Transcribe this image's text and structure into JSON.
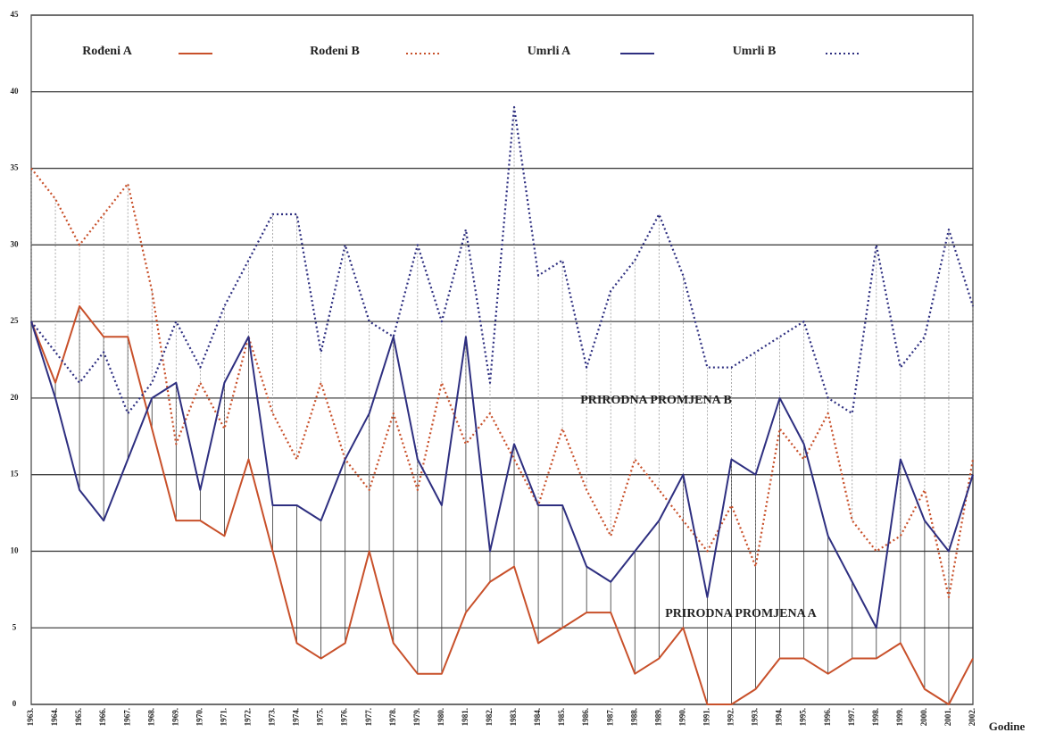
{
  "chart_data": {
    "type": "line",
    "categories": [
      "1963.",
      "1964.",
      "1965.",
      "1966.",
      "1967.",
      "1968.",
      "1969.",
      "1970.",
      "1971.",
      "1972.",
      "1973.",
      "1974.",
      "1975.",
      "1976.",
      "1977.",
      "1978.",
      "1979.",
      "1980.",
      "1981.",
      "1982.",
      "1983.",
      "1984.",
      "1985.",
      "1986.",
      "1987.",
      "1988.",
      "1989.",
      "1990.",
      "1991.",
      "1992.",
      "1993.",
      "1994.",
      "1995.",
      "1996.",
      "1997.",
      "1998.",
      "1999.",
      "2000.",
      "2001.",
      "2002."
    ],
    "series": [
      {
        "name": "Rođeni A",
        "color": "#c8502a",
        "style": "solid",
        "values": [
          25,
          21,
          26,
          24,
          24,
          18,
          12,
          12,
          11,
          16,
          10,
          4,
          3,
          4,
          10,
          4,
          2,
          2,
          6,
          8,
          9,
          4,
          5,
          6,
          6,
          2,
          3,
          5,
          0,
          0,
          1,
          3,
          3,
          2,
          3,
          3,
          4,
          1,
          0,
          3
        ]
      },
      {
        "name": "Rođeni B",
        "color": "#c8502a",
        "style": "dotted",
        "values": [
          35,
          33,
          30,
          32,
          34,
          27,
          17,
          21,
          18,
          24,
          19,
          16,
          21,
          16,
          14,
          19,
          14,
          21,
          17,
          19,
          16,
          13,
          18,
          14,
          11,
          16,
          14,
          12,
          10,
          13,
          9,
          18,
          16,
          19,
          12,
          10,
          11,
          14,
          7,
          16
        ]
      },
      {
        "name": "Umrli A",
        "color": "#2e2f80",
        "style": "solid",
        "values": [
          25,
          20,
          14,
          12,
          16,
          20,
          21,
          14,
          21,
          24,
          13,
          13,
          12,
          16,
          19,
          24,
          16,
          13,
          24,
          10,
          17,
          13,
          13,
          9,
          8,
          10,
          12,
          15,
          7,
          16,
          15,
          20,
          17,
          11,
          8,
          5,
          16,
          12,
          10,
          15
        ]
      },
      {
        "name": "Umrli B",
        "color": "#2e2f80",
        "style": "dotted",
        "values": [
          25,
          23,
          21,
          23,
          19,
          21,
          25,
          22,
          26,
          29,
          32,
          32,
          23,
          30,
          25,
          24,
          30,
          25,
          31,
          21,
          39,
          28,
          29,
          22,
          27,
          29,
          32,
          28,
          22,
          22,
          23,
          24,
          25,
          20,
          19,
          30,
          22,
          24,
          31,
          26
        ]
      }
    ],
    "ylim": [
      0,
      45
    ],
    "yticks": [
      0,
      5,
      10,
      15,
      20,
      25,
      30,
      35,
      40,
      45
    ],
    "grid": true,
    "xlabel": "Godine",
    "annotations": [
      "PRIRODNA PROMJENA B",
      "PRIRODNA PROMJENA A"
    ],
    "drop_lines": true
  }
}
